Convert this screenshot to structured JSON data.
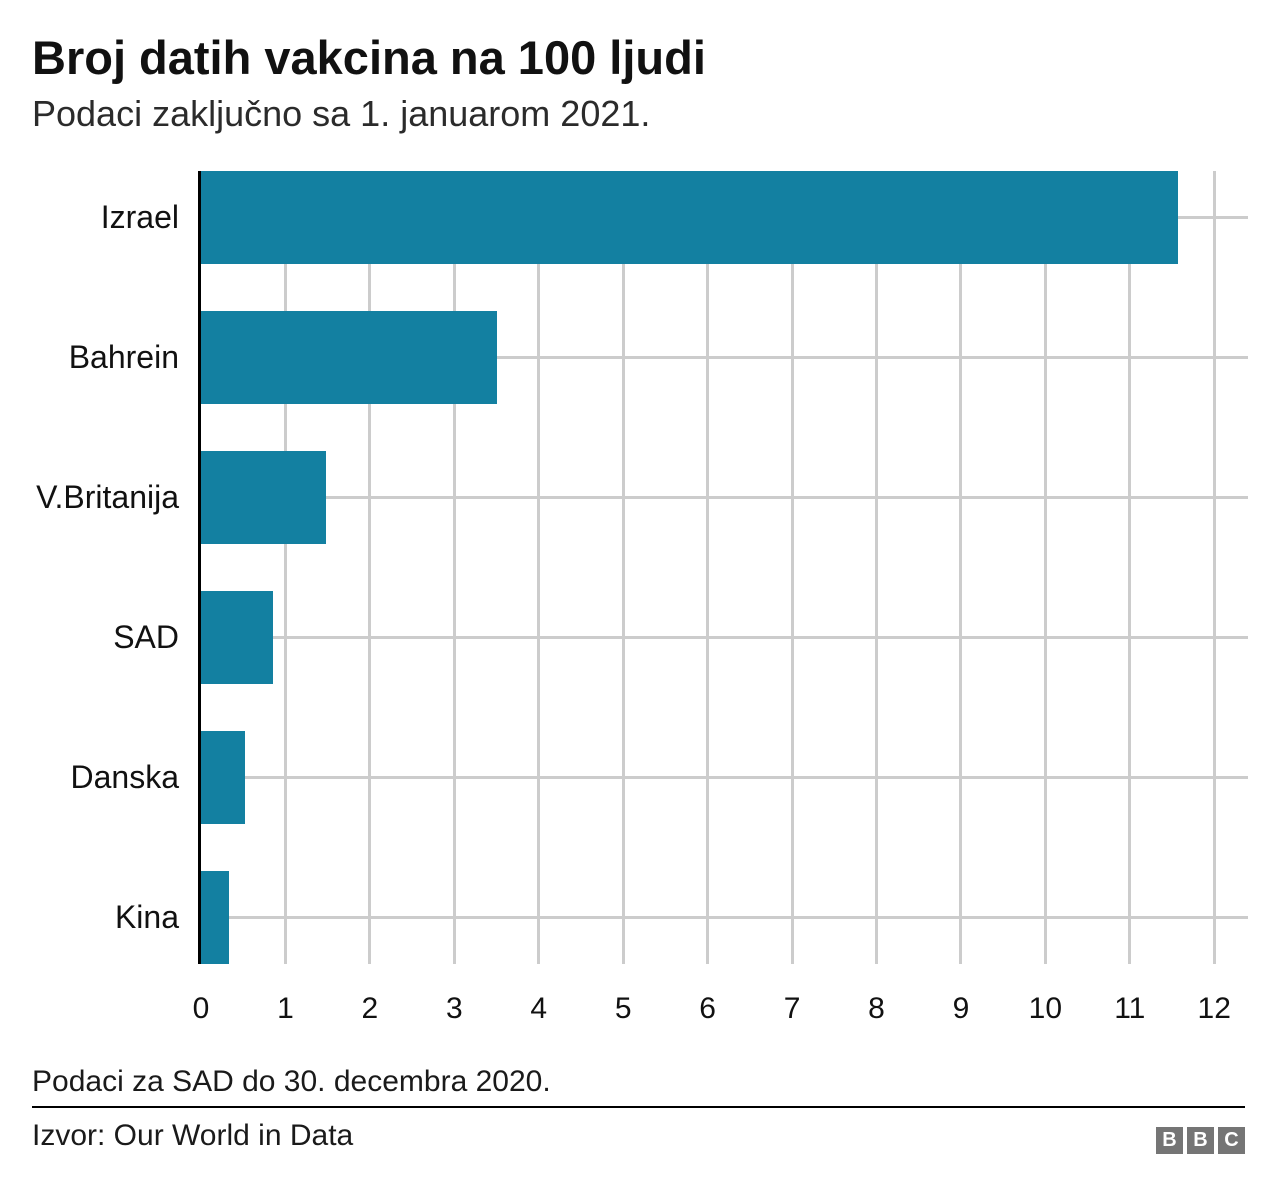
{
  "header": {
    "title": "Broj datih vakcina na 100 ljudi",
    "subtitle": "Podaci zaključno sa 1. januarom 2021."
  },
  "chart_data": {
    "type": "bar",
    "orientation": "horizontal",
    "title": "Broj datih vakcina na 100 ljudi",
    "subtitle": "Podaci zaključno sa 1. januarom 2021.",
    "categories": [
      "Izrael",
      "Bahrein",
      "V.Britanija",
      "SAD",
      "Danska",
      "Kina"
    ],
    "values": [
      11.57,
      3.5,
      1.48,
      0.85,
      0.52,
      0.33
    ],
    "x_ticks": [
      0,
      1,
      2,
      3,
      4,
      5,
      6,
      7,
      8,
      9,
      10,
      11,
      12
    ],
    "xlim": [
      0,
      12.4
    ],
    "xlabel": "",
    "ylabel": "",
    "grid": true,
    "legend": false,
    "bar_color": "#1380A1",
    "gridline_color": "#cccccc",
    "axis_line_color": "#000000"
  },
  "footer": {
    "note": "Podaci za SAD do 30. decembra 2020.",
    "source": "Izvor: Our World in Data",
    "logo_letters": [
      "B",
      "B",
      "C"
    ],
    "logo_color": "#757575"
  }
}
